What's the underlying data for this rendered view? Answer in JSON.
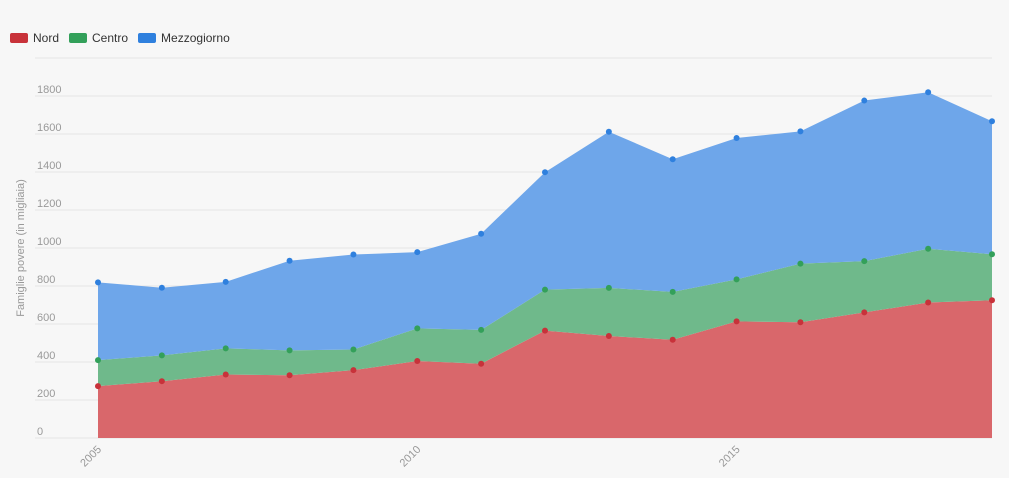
{
  "legend": [
    {
      "label": "Nord",
      "color": "#c8323a"
    },
    {
      "label": "Centro",
      "color": "#33a05a"
    },
    {
      "label": "Mezzogiorno",
      "color": "#2f80de"
    }
  ],
  "chart_data": {
    "type": "area",
    "stacked": true,
    "title": "",
    "xlabel": "",
    "ylabel": "Famiglie povere (in migliaia)",
    "x": [
      2005,
      2006,
      2007,
      2008,
      2009,
      2010,
      2011,
      2012,
      2013,
      2014,
      2015,
      2016,
      2017,
      2018,
      2019
    ],
    "x_tick_labels": [
      "2005",
      "2010",
      "2015"
    ],
    "y_tick_labels": [
      "0",
      "200",
      "400",
      "600",
      "800",
      "1000",
      "1200",
      "1400",
      "1600",
      "1800"
    ],
    "ylim": [
      0,
      2000
    ],
    "grid": true,
    "legend_position": "top-left",
    "series": [
      {
        "name": "Nord",
        "color": "#c8323a",
        "fill": "#d9676b",
        "values": [
          273,
          299,
          334,
          330,
          357,
          405,
          391,
          565,
          537,
          517,
          614,
          609,
          661,
          713,
          725
        ]
      },
      {
        "name": "Centro",
        "color": "#33a05a",
        "fill": "#6fb98b",
        "values": [
          137,
          136,
          138,
          131,
          109,
          172,
          178,
          216,
          253,
          252,
          221,
          309,
          270,
          283,
          242
        ]
      },
      {
        "name": "Mezzogiorno",
        "color": "#2f80de",
        "fill": "#6ea6ea",
        "values": [
          409,
          356,
          350,
          472,
          500,
          401,
          506,
          618,
          822,
          698,
          744,
          696,
          845,
          824,
          700
        ]
      }
    ]
  }
}
